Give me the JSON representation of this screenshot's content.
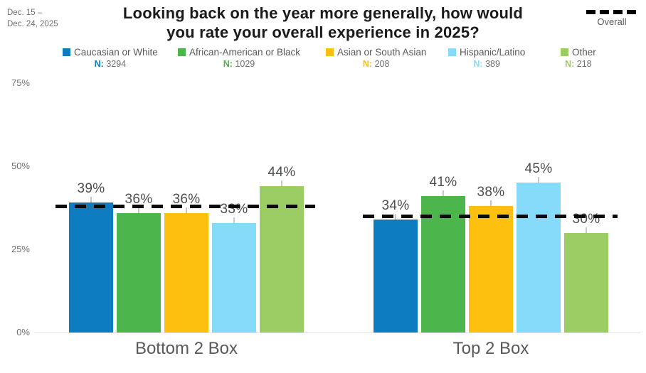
{
  "header": {
    "date_line1": "Dec. 15 –",
    "date_line2": "Dec. 24, 2025",
    "title_line1": "Looking back on the year more generally, how would",
    "title_line2": "you rate your overall experience in 2025?"
  },
  "overall_legend": {
    "label": "Overall"
  },
  "legend": {
    "n_prefix": "N:"
  },
  "chart_data": {
    "type": "bar",
    "title": "Looking back on the year more generally, how would you rate your overall experience in 2025?",
    "date_range": "Dec. 15 – Dec. 24, 2025",
    "categories": [
      "Bottom 2 Box",
      "Top 2 Box"
    ],
    "series": [
      {
        "name": "Caucasian or White",
        "n": "3294",
        "color": "#0d7cc1",
        "values": [
          39,
          34
        ]
      },
      {
        "name": "African-American or Black",
        "n": "1029",
        "color": "#4cb64c",
        "values": [
          36,
          41
        ]
      },
      {
        "name": "Asian or South Asian",
        "n": "208",
        "color": "#fec00e",
        "values": [
          36,
          38
        ]
      },
      {
        "name": "Hispanic/Latino",
        "n": "389",
        "color": "#87dbfa",
        "values": [
          33,
          45
        ]
      },
      {
        "name": "Other",
        "n": "218",
        "color": "#9ccd65",
        "values": [
          44,
          30
        ]
      }
    ],
    "overall_line": {
      "name": "Overall",
      "style": "dashed",
      "color": "#0b0b0b",
      "values": [
        38,
        35
      ]
    },
    "value_suffix": "%",
    "yticks": [
      {
        "label": "0%",
        "value": 0
      },
      {
        "label": "25%",
        "value": 25
      },
      {
        "label": "50%",
        "value": 50
      },
      {
        "label": "75%",
        "value": 75
      }
    ],
    "ylim": [
      0,
      75
    ],
    "grid": false,
    "legend_position": "top",
    "bar_label_color": "#4d4e50"
  }
}
